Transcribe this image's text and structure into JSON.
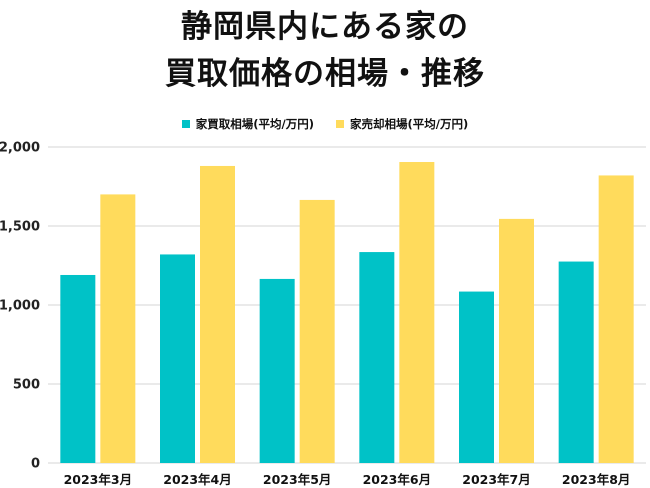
{
  "title": {
    "line1": "静岡県内にある家の",
    "line2": "買取価格の相場・推移"
  },
  "colors": {
    "series1": "#00C2C7",
    "series2": "#FFDB5C",
    "grid": "#d4d4d4"
  },
  "chart_data": {
    "type": "bar",
    "categories": [
      "2023年3月",
      "2023年4月",
      "2023年5月",
      "2023年6月",
      "2023年7月",
      "2023年8月"
    ],
    "series": [
      {
        "name": "家買取相場(平均/万円)",
        "values": [
          1190,
          1320,
          1165,
          1335,
          1085,
          1275
        ]
      },
      {
        "name": "家売却相場(平均/万円)",
        "values": [
          1700,
          1880,
          1665,
          1905,
          1545,
          1820
        ]
      }
    ],
    "yticks": [
      0,
      500,
      1000,
      1500,
      2000
    ],
    "ytick_labels": [
      "0",
      "500",
      "1,000",
      "1,500",
      "2,000"
    ],
    "ylim": [
      0,
      2000
    ],
    "grid": true,
    "legend": "top-center"
  }
}
